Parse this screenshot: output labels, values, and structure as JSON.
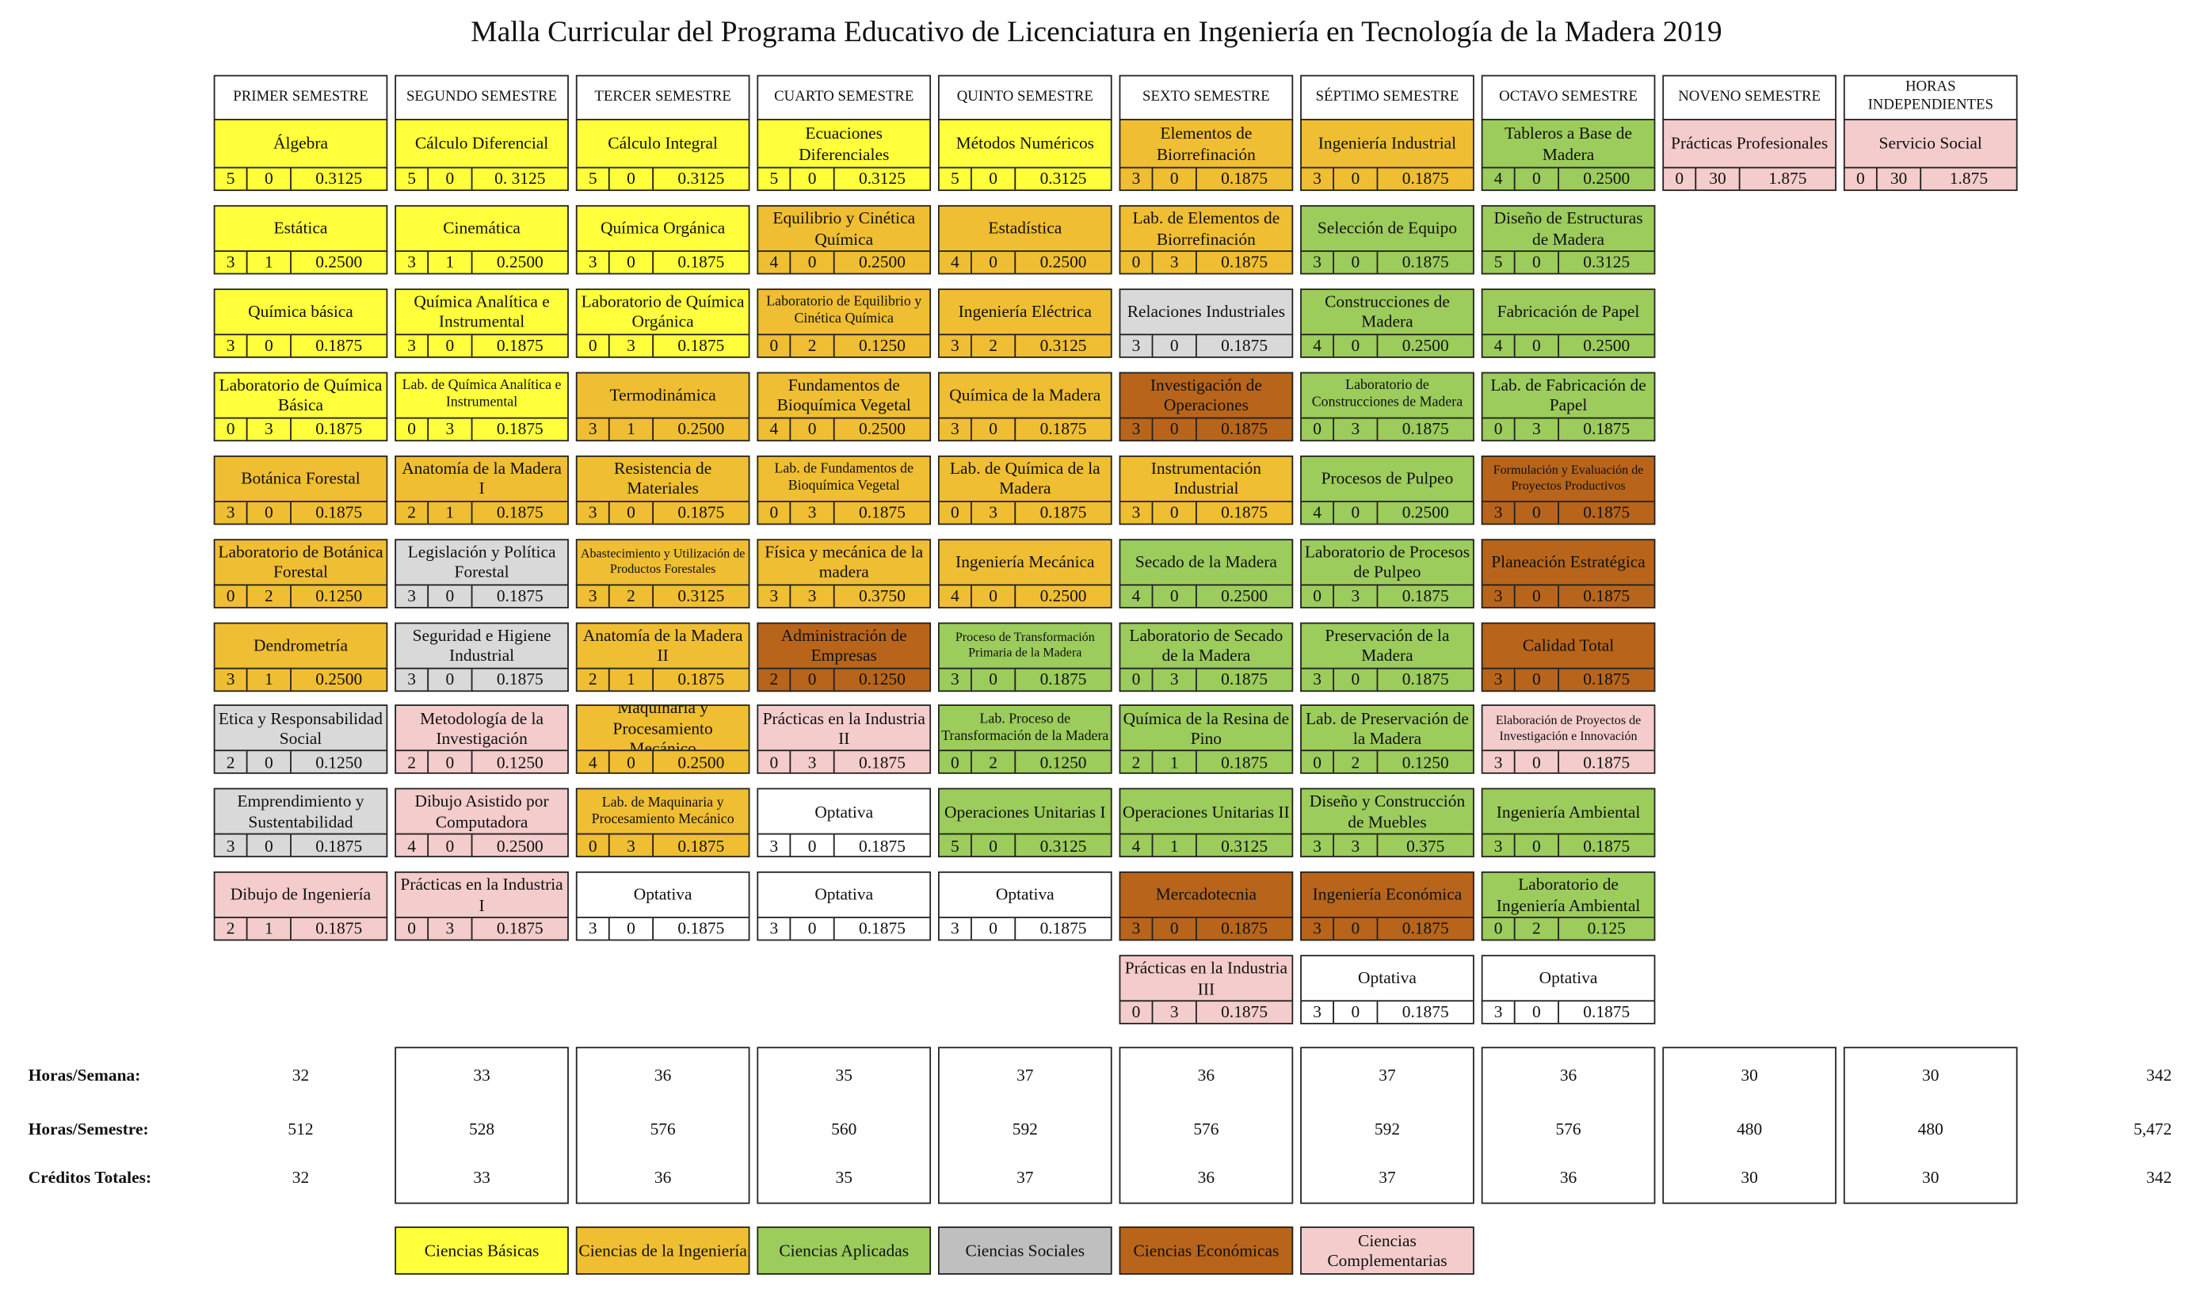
{
  "title": "Malla Curricular del Programa Educativo de Licenciatura en Ingeniería en Tecnología de la Madera 2019",
  "columns": [
    {
      "header": "PRIMER SEMESTRE",
      "courses": [
        {
          "name": "Álgebra",
          "theory": "5",
          "practice": "0",
          "credits": "0.3125",
          "color": "#ffff3c"
        },
        {
          "name": "Estática",
          "theory": "3",
          "practice": "1",
          "credits": "0.2500",
          "color": "#ffff3c"
        },
        {
          "name": "Química básica",
          "theory": "3",
          "practice": "0",
          "credits": "0.1875",
          "color": "#ffff3c"
        },
        {
          "name": "Laboratorio de Química Básica",
          "theory": "0",
          "practice": "3",
          "credits": "0.1875",
          "color": "#ffff3c"
        },
        {
          "name": "Botánica Forestal",
          "theory": "3",
          "practice": "0",
          "credits": "0.1875",
          "color": "#f0be32"
        },
        {
          "name": "Laboratorio de Botánica Forestal",
          "theory": "0",
          "practice": "2",
          "credits": "0.1250",
          "color": "#f0be32"
        },
        {
          "name": "Dendrometría",
          "theory": "3",
          "practice": "1",
          "credits": "0.2500",
          "color": "#f0be32"
        },
        {
          "name": "Etica y Responsabilidad Social",
          "theory": "2",
          "practice": "0",
          "credits": "0.1250",
          "color": "#d9d9d9"
        },
        {
          "name": "Emprendimiento y Sustentabilidad",
          "theory": "3",
          "practice": "0",
          "credits": "0.1875",
          "color": "#d9d9d9"
        },
        {
          "name": "Dibujo de Ingeniería",
          "theory": "2",
          "practice": "1",
          "credits": "0.1875",
          "color": "#f4cccc"
        }
      ]
    },
    {
      "header": "SEGUNDO SEMESTRE",
      "courses": [
        {
          "name": "Cálculo Diferencial",
          "theory": "5",
          "practice": "0",
          "credits": "0. 3125",
          "color": "#ffff3c"
        },
        {
          "name": "Cinemática",
          "theory": "3",
          "practice": "1",
          "credits": "0.2500",
          "color": "#ffff3c"
        },
        {
          "name": "Química Analítica e Instrumental",
          "theory": "3",
          "practice": "0",
          "credits": "0.1875",
          "color": "#ffff3c"
        },
        {
          "name": "Lab. de Química Analítica e Instrumental",
          "theory": "0",
          "practice": "3",
          "credits": "0.1875",
          "color": "#ffff3c"
        },
        {
          "name": "Anatomía de la Madera I",
          "theory": "2",
          "practice": "1",
          "credits": "0.1875",
          "color": "#f0be32"
        },
        {
          "name": "Legislación y Política Forestal",
          "theory": "3",
          "practice": "0",
          "credits": "0.1875",
          "color": "#d9d9d9"
        },
        {
          "name": "Seguridad e Higiene Industrial",
          "theory": "3",
          "practice": "0",
          "credits": "0.1875",
          "color": "#d9d9d9"
        },
        {
          "name": "Metodología de la Investigación",
          "theory": "2",
          "practice": "0",
          "credits": "0.1250",
          "color": "#f4cccc"
        },
        {
          "name": "Dibujo Asistido por Computadora",
          "theory": "4",
          "practice": "0",
          "credits": "0.2500",
          "color": "#f4cccc"
        },
        {
          "name": "Prácticas en la Industria I",
          "theory": "0",
          "practice": "3",
          "credits": "0.1875",
          "color": "#f4cccc"
        }
      ]
    },
    {
      "header": "TERCER SEMESTRE",
      "courses": [
        {
          "name": "Cálculo Integral",
          "theory": "5",
          "practice": "0",
          "credits": "0.3125",
          "color": "#ffff3c"
        },
        {
          "name": "Química Orgánica",
          "theory": "3",
          "practice": "0",
          "credits": "0.1875",
          "color": "#ffff3c"
        },
        {
          "name": "Laboratorio de Química Orgánica",
          "theory": "0",
          "practice": "3",
          "credits": "0.1875",
          "color": "#ffff3c"
        },
        {
          "name": "Termodinámica",
          "theory": "3",
          "practice": "1",
          "credits": "0.2500",
          "color": "#f0be32"
        },
        {
          "name": "Resistencia de Materiales",
          "theory": "3",
          "practice": "0",
          "credits": "0.1875",
          "color": "#f0be32"
        },
        {
          "name": "Abastecimiento y Utilización de Productos Forestales",
          "theory": "3",
          "practice": "2",
          "credits": "0.3125",
          "color": "#f0be32"
        },
        {
          "name": "Anatomía de la Madera II",
          "theory": "2",
          "practice": "1",
          "credits": "0.1875",
          "color": "#f0be32"
        },
        {
          "name": "Maquinaria y Procesamiento Mecánico",
          "theory": "4",
          "practice": "0",
          "credits": "0.2500",
          "color": "#f0be32"
        },
        {
          "name": "Lab. de Maquinaria y Procesamiento Mecánico",
          "theory": "0",
          "practice": "3",
          "credits": "0.1875",
          "color": "#f0be32"
        },
        {
          "name": "Optativa",
          "theory": "3",
          "practice": "0",
          "credits": "0.1875",
          "color": "#ffffff"
        }
      ]
    },
    {
      "header": "CUARTO SEMESTRE",
      "courses": [
        {
          "name": "Ecuaciones Diferenciales",
          "theory": "5",
          "practice": "0",
          "credits": "0.3125",
          "color": "#ffff3c"
        },
        {
          "name": "Equilibrio y Cinética Química",
          "theory": "4",
          "practice": "0",
          "credits": "0.2500",
          "color": "#f0be32"
        },
        {
          "name": "Laboratorio de Equilibrio y Cinética Química",
          "theory": "0",
          "practice": "2",
          "credits": "0.1250",
          "color": "#f0be32"
        },
        {
          "name": "Fundamentos de Bioquímica Vegetal",
          "theory": "4",
          "practice": "0",
          "credits": "0.2500",
          "color": "#f0be32"
        },
        {
          "name": "Lab. de Fundamentos de Bioquímica Vegetal",
          "theory": "0",
          "practice": "3",
          "credits": "0.1875",
          "color": "#f0be32"
        },
        {
          "name": "Física y mecánica de la madera",
          "theory": "3",
          "practice": "3",
          "credits": "0.3750",
          "color": "#f0be32"
        },
        {
          "name": "Administración de Empresas",
          "theory": "2",
          "practice": "0",
          "credits": "0.1250",
          "color": "#b8651b"
        },
        {
          "name": "Prácticas en la Industria II",
          "theory": "0",
          "practice": "3",
          "credits": "0.1875",
          "color": "#f4cccc"
        },
        {
          "name": "Optativa",
          "theory": "3",
          "practice": "0",
          "credits": "0.1875",
          "color": "#ffffff"
        },
        {
          "name": "Optativa",
          "theory": "3",
          "practice": "0",
          "credits": "0.1875",
          "color": "#ffffff"
        }
      ]
    },
    {
      "header": "QUINTO SEMESTRE",
      "courses": [
        {
          "name": "Métodos Numéricos",
          "theory": "5",
          "practice": "0",
          "credits": "0.3125",
          "color": "#ffff3c"
        },
        {
          "name": "Estadística",
          "theory": "4",
          "practice": "0",
          "credits": "0.2500",
          "color": "#f0be32"
        },
        {
          "name": "Ingeniería Eléctrica",
          "theory": "3",
          "practice": "2",
          "credits": "0.3125",
          "color": "#f0be32"
        },
        {
          "name": "Química de la Madera",
          "theory": "3",
          "practice": "0",
          "credits": "0.1875",
          "color": "#f0be32"
        },
        {
          "name": "Lab. de Química de la Madera",
          "theory": "0",
          "practice": "3",
          "credits": "0.1875",
          "color": "#f0be32"
        },
        {
          "name": "Ingeniería Mecánica",
          "theory": "4",
          "practice": "0",
          "credits": "0.2500",
          "color": "#f0be32"
        },
        {
          "name": "Proceso de Transformación Primaria de la Madera",
          "theory": "3",
          "practice": "0",
          "credits": "0.1875",
          "color": "#9ccc5c"
        },
        {
          "name": "Lab. Proceso de Transformación de la Madera",
          "theory": "0",
          "practice": "2",
          "credits": "0.1250",
          "color": "#9ccc5c"
        },
        {
          "name": "Operaciones Unitarias I",
          "theory": "5",
          "practice": "0",
          "credits": "0.3125",
          "color": "#9ccc5c"
        },
        {
          "name": "Optativa",
          "theory": "3",
          "practice": "0",
          "credits": "0.1875",
          "color": "#ffffff"
        }
      ]
    },
    {
      "header": "SEXTO SEMESTRE",
      "courses": [
        {
          "name": "Elementos de Biorrefinación",
          "theory": "3",
          "practice": "0",
          "credits": "0.1875",
          "color": "#f0be32"
        },
        {
          "name": "Lab. de Elementos de Biorrefinación",
          "theory": "0",
          "practice": "3",
          "credits": "0.1875",
          "color": "#f0be32"
        },
        {
          "name": "Relaciones Industriales",
          "theory": "3",
          "practice": "0",
          "credits": "0.1875",
          "color": "#d9d9d9"
        },
        {
          "name": "Investigación de Operaciones",
          "theory": "3",
          "practice": "0",
          "credits": "0.1875",
          "color": "#b8651b"
        },
        {
          "name": "Instrumentación Industrial",
          "theory": "3",
          "practice": "0",
          "credits": "0.1875",
          "color": "#f0be32"
        },
        {
          "name": "Secado de la Madera",
          "theory": "4",
          "practice": "0",
          "credits": "0.2500",
          "color": "#9ccc5c"
        },
        {
          "name": "Laboratorio de Secado de la Madera",
          "theory": "0",
          "practice": "3",
          "credits": "0.1875",
          "color": "#9ccc5c"
        },
        {
          "name": "Química de la Resina de Pino",
          "theory": "2",
          "practice": "1",
          "credits": "0.1875",
          "color": "#9ccc5c"
        },
        {
          "name": "Operaciones Unitarias II",
          "theory": "4",
          "practice": "1",
          "credits": "0.3125",
          "color": "#9ccc5c"
        },
        {
          "name": "Mercadotecnia",
          "theory": "3",
          "practice": "0",
          "credits": "0.1875",
          "color": "#b8651b"
        },
        {
          "name": "Prácticas en la Industria III",
          "theory": "0",
          "practice": "3",
          "credits": "0.1875",
          "color": "#f4cccc"
        }
      ]
    },
    {
      "header": "SÉPTIMO SEMESTRE",
      "courses": [
        {
          "name": "Ingeniería Industrial",
          "theory": "3",
          "practice": "0",
          "credits": "0.1875",
          "color": "#f0be32"
        },
        {
          "name": "Selección de Equipo",
          "theory": "3",
          "practice": "0",
          "credits": "0.1875",
          "color": "#9ccc5c"
        },
        {
          "name": "Construcciones de Madera",
          "theory": "4",
          "practice": "0",
          "credits": "0.2500",
          "color": "#9ccc5c"
        },
        {
          "name": "Laboratorio de Construcciones de Madera",
          "theory": "0",
          "practice": "3",
          "credits": "0.1875",
          "color": "#9ccc5c"
        },
        {
          "name": "Procesos de Pulpeo",
          "theory": "4",
          "practice": "0",
          "credits": "0.2500",
          "color": "#9ccc5c"
        },
        {
          "name": "Laboratorio de Procesos de Pulpeo",
          "theory": "0",
          "practice": "3",
          "credits": "0.1875",
          "color": "#9ccc5c"
        },
        {
          "name": "Preservación de la Madera",
          "theory": "3",
          "practice": "0",
          "credits": "0.1875",
          "color": "#9ccc5c"
        },
        {
          "name": "Lab. de Preservación de la Madera",
          "theory": "0",
          "practice": "2",
          "credits": "0.1250",
          "color": "#9ccc5c"
        },
        {
          "name": "Diseño y Construcción de Muebles",
          "theory": "3",
          "practice": "3",
          "credits": "0.375",
          "color": "#9ccc5c"
        },
        {
          "name": "Ingeniería Económica",
          "theory": "3",
          "practice": "0",
          "credits": "0.1875",
          "color": "#b8651b"
        },
        {
          "name": "Optativa",
          "theory": "3",
          "practice": "0",
          "credits": "0.1875",
          "color": "#ffffff"
        }
      ]
    },
    {
      "header": "OCTAVO SEMESTRE",
      "courses": [
        {
          "name": "Tableros a Base de Madera",
          "theory": "4",
          "practice": "0",
          "credits": "0.2500",
          "color": "#9ccc5c"
        },
        {
          "name": "Diseño de Estructuras de Madera",
          "theory": "5",
          "practice": "0",
          "credits": "0.3125",
          "color": "#9ccc5c"
        },
        {
          "name": "Fabricación de Papel",
          "theory": "4",
          "practice": "0",
          "credits": "0.2500",
          "color": "#9ccc5c"
        },
        {
          "name": "Lab. de Fabricación de Papel",
          "theory": "0",
          "practice": "3",
          "credits": "0.1875",
          "color": "#9ccc5c"
        },
        {
          "name": "Formulación y Evaluación de Proyectos Productivos",
          "theory": "3",
          "practice": "0",
          "credits": "0.1875",
          "color": "#b8651b"
        },
        {
          "name": "Planeación Estratégica",
          "theory": "3",
          "practice": "0",
          "credits": "0.1875",
          "color": "#b8651b"
        },
        {
          "name": "Calidad Total",
          "theory": "3",
          "practice": "0",
          "credits": "0.1875",
          "color": "#b8651b"
        },
        {
          "name": "Elaboración de Proyectos de Investigación e Innovación",
          "theory": "3",
          "practice": "0",
          "credits": "0.1875",
          "color": "#f4cccc"
        },
        {
          "name": "Ingeniería Ambiental",
          "theory": "3",
          "practice": "0",
          "credits": "0.1875",
          "color": "#9ccc5c"
        },
        {
          "name": "Laboratorio de Ingeniería Ambiental",
          "theory": "0",
          "practice": "2",
          "credits": "0.125",
          "color": "#9ccc5c"
        },
        {
          "name": "Optativa",
          "theory": "3",
          "practice": "0",
          "credits": "0.1875",
          "color": "#ffffff"
        }
      ]
    },
    {
      "header": "NOVENO SEMESTRE",
      "courses": [
        {
          "name": "Prácticas Profesionales",
          "theory": "0",
          "practice": "30",
          "credits": "1.875",
          "color": "#f4cccc"
        }
      ]
    },
    {
      "header": "HORAS INDEPENDIENTES",
      "courses": [
        {
          "name": "Servicio Social",
          "theory": "0",
          "practice": "30",
          "credits": "1.875",
          "color": "#f4cccc"
        }
      ]
    }
  ],
  "summary": [
    {
      "label": "Horas/Semana:",
      "values": [
        "32",
        "33",
        "36",
        "35",
        "37",
        "36",
        "37",
        "36",
        "30",
        "30"
      ],
      "total": "342"
    },
    {
      "label": "Horas/Semestre:",
      "values": [
        "512",
        "528",
        "576",
        "560",
        "592",
        "576",
        "592",
        "576",
        "480",
        "480"
      ],
      "total": "5,472"
    },
    {
      "label": "Créditos Totales:",
      "values": [
        "32",
        "33",
        "36",
        "35",
        "37",
        "36",
        "37",
        "36",
        "30",
        "30"
      ],
      "total": "342"
    }
  ],
  "legend": [
    {
      "label": "Ciencias Básicas",
      "color": "#ffff3c"
    },
    {
      "label": "Ciencias de la Ingeniería",
      "color": "#f0be32"
    },
    {
      "label": "Ciencias Aplicadas",
      "color": "#9ccc5c"
    },
    {
      "label": "Ciencias Sociales",
      "color": "#bfbfbf"
    },
    {
      "label": "Ciencias Económicas",
      "color": "#b8651b"
    },
    {
      "label": "Ciencias Complementarias",
      "color": "#f4cccc"
    }
  ]
}
